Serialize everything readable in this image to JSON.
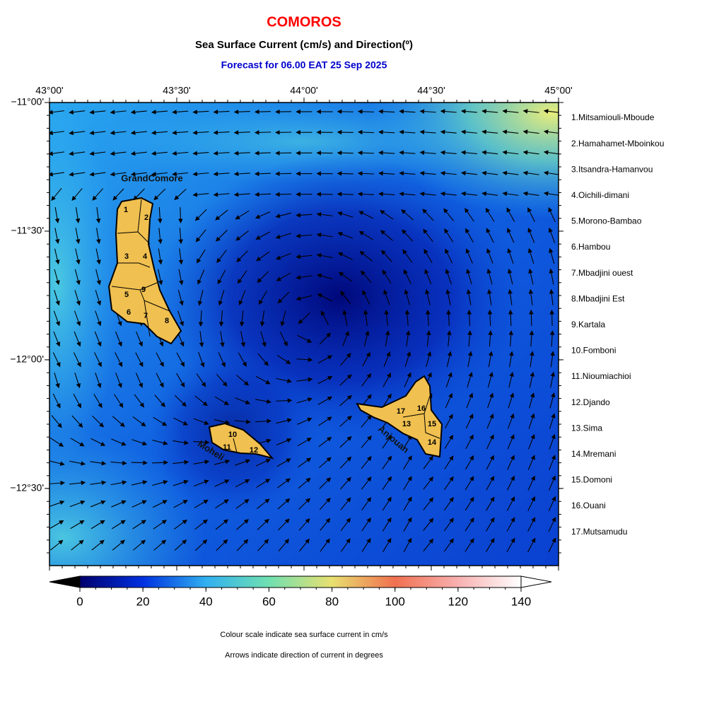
{
  "header": {
    "title": "COMOROS",
    "subtitle": "Sea Surface Current (cm/s) and Direction(º)",
    "forecast": "Forecast for  06.00 EAT 25 Sep 2025"
  },
  "map": {
    "xlim": [
      43,
      45
    ],
    "ylim": [
      -12.8,
      -11
    ],
    "xticks": [
      {
        "value": 43,
        "label": "43°00'"
      },
      {
        "value": 43.5,
        "label": "43°30'"
      },
      {
        "value": 44,
        "label": "44°00'"
      },
      {
        "value": 44.5,
        "label": "44°30'"
      },
      {
        "value": 45,
        "label": "45°00'"
      }
    ],
    "yticks": [
      {
        "value": -11,
        "label": "−11°00'"
      },
      {
        "value": -11.5,
        "label": "−11°30'"
      },
      {
        "value": -12,
        "label": "−12°00'"
      },
      {
        "value": -12.5,
        "label": "−12°30'"
      }
    ],
    "island_labels": [
      "GrandComore",
      "Moheli",
      "Anjouan"
    ],
    "region_numbers": [
      "1",
      "2",
      "3",
      "4",
      "5",
      "6",
      "7",
      "8",
      "9",
      "10",
      "11",
      "12",
      "13",
      "14",
      "15",
      "16",
      "17"
    ]
  },
  "regions": [
    "1.Mitsamiouli-Mboude",
    "2.Hamahamet-Mboinkou",
    "3.Itsandra-Hamanvou",
    "4.Oichili-dimani",
    "5.Morono-Bambao",
    "6.Hambou",
    "7.Mbadjini ouest",
    "8.Mbadjini Est",
    "9.Kartala",
    "10.Fomboni",
    "11.Nioumiachioi",
    "12.Djando",
    "13.Sima",
    "14.Mremani",
    "15.Domoni",
    "16.Ouani",
    "17.Mutsamudu"
  ],
  "colorbar": {
    "lim": [
      0,
      140
    ],
    "ticks": [
      0,
      20,
      40,
      60,
      80,
      100,
      120,
      140
    ]
  },
  "notes": [
    "Colour scale indicate sea surface current in cm/s",
    "Arrows indicate direction of current in degrees"
  ]
}
